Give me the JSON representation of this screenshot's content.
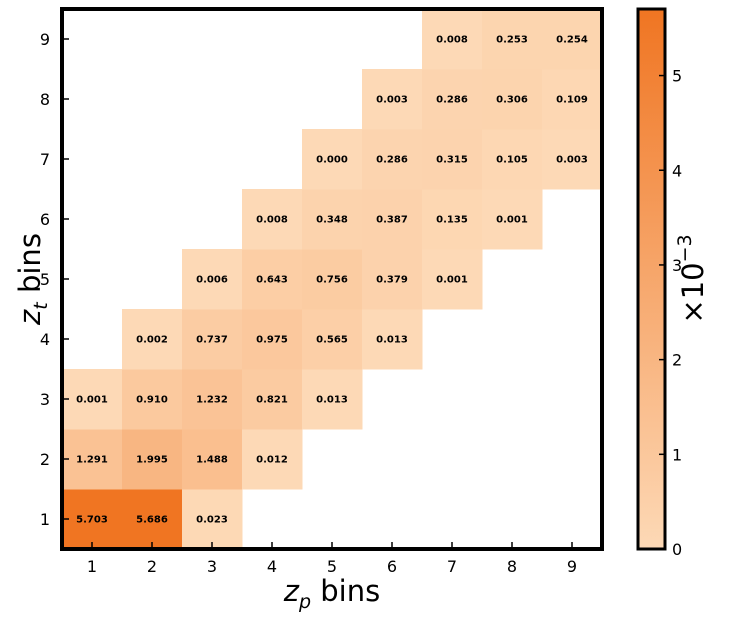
{
  "chart_data": {
    "type": "heatmap",
    "title": "",
    "xlabel": "z_p bins",
    "ylabel": "z_t bins",
    "x_categories": [
      "1",
      "2",
      "3",
      "4",
      "5",
      "6",
      "7",
      "8",
      "9"
    ],
    "y_categories": [
      "1",
      "2",
      "3",
      "4",
      "5",
      "6",
      "7",
      "8",
      "9"
    ],
    "colorbar": {
      "label": "×10⁻³",
      "min": 0,
      "max": 5.703,
      "ticks": [
        "0",
        "1",
        "2",
        "3",
        "4",
        "5"
      ],
      "color_low": "#fdd9b6",
      "color_high": "#f07522"
    },
    "cells": [
      {
        "x": "1",
        "y": "1",
        "value": 5.703,
        "label": "5.703"
      },
      {
        "x": "2",
        "y": "1",
        "value": 5.686,
        "label": "5.686"
      },
      {
        "x": "3",
        "y": "1",
        "value": 0.023,
        "label": "0.023"
      },
      {
        "x": "1",
        "y": "2",
        "value": 1.291,
        "label": "1.291"
      },
      {
        "x": "2",
        "y": "2",
        "value": 1.995,
        "label": "1.995"
      },
      {
        "x": "3",
        "y": "2",
        "value": 1.488,
        "label": "1.488"
      },
      {
        "x": "4",
        "y": "2",
        "value": 0.012,
        "label": "0.012"
      },
      {
        "x": "1",
        "y": "3",
        "value": 0.001,
        "label": "0.001"
      },
      {
        "x": "2",
        "y": "3",
        "value": 0.91,
        "label": "0.910"
      },
      {
        "x": "3",
        "y": "3",
        "value": 1.232,
        "label": "1.232"
      },
      {
        "x": "4",
        "y": "3",
        "value": 0.821,
        "label": "0.821"
      },
      {
        "x": "5",
        "y": "3",
        "value": 0.013,
        "label": "0.013"
      },
      {
        "x": "2",
        "y": "4",
        "value": 0.002,
        "label": "0.002"
      },
      {
        "x": "3",
        "y": "4",
        "value": 0.737,
        "label": "0.737"
      },
      {
        "x": "4",
        "y": "4",
        "value": 0.975,
        "label": "0.975"
      },
      {
        "x": "5",
        "y": "4",
        "value": 0.565,
        "label": "0.565"
      },
      {
        "x": "6",
        "y": "4",
        "value": 0.013,
        "label": "0.013"
      },
      {
        "x": "3",
        "y": "5",
        "value": 0.006,
        "label": "0.006"
      },
      {
        "x": "4",
        "y": "5",
        "value": 0.643,
        "label": "0.643"
      },
      {
        "x": "5",
        "y": "5",
        "value": 0.756,
        "label": "0.756"
      },
      {
        "x": "6",
        "y": "5",
        "value": 0.379,
        "label": "0.379"
      },
      {
        "x": "7",
        "y": "5",
        "value": 0.001,
        "label": "0.001"
      },
      {
        "x": "4",
        "y": "6",
        "value": 0.008,
        "label": "0.008"
      },
      {
        "x": "5",
        "y": "6",
        "value": 0.348,
        "label": "0.348"
      },
      {
        "x": "6",
        "y": "6",
        "value": 0.387,
        "label": "0.387"
      },
      {
        "x": "7",
        "y": "6",
        "value": 0.135,
        "label": "0.135"
      },
      {
        "x": "8",
        "y": "6",
        "value": 0.001,
        "label": "0.001"
      },
      {
        "x": "5",
        "y": "7",
        "value": 0.0,
        "label": "0.000"
      },
      {
        "x": "6",
        "y": "7",
        "value": 0.286,
        "label": "0.286"
      },
      {
        "x": "7",
        "y": "7",
        "value": 0.315,
        "label": "0.315"
      },
      {
        "x": "8",
        "y": "7",
        "value": 0.105,
        "label": "0.105"
      },
      {
        "x": "9",
        "y": "7",
        "value": 0.003,
        "label": "0.003"
      },
      {
        "x": "6",
        "y": "8",
        "value": 0.003,
        "label": "0.003"
      },
      {
        "x": "7",
        "y": "8",
        "value": 0.286,
        "label": "0.286"
      },
      {
        "x": "8",
        "y": "8",
        "value": 0.306,
        "label": "0.306"
      },
      {
        "x": "9",
        "y": "8",
        "value": 0.109,
        "label": "0.109"
      },
      {
        "x": "7",
        "y": "9",
        "value": 0.008,
        "label": "0.008"
      },
      {
        "x": "8",
        "y": "9",
        "value": 0.253,
        "label": "0.253"
      },
      {
        "x": "9",
        "y": "9",
        "value": 0.254,
        "label": "0.254"
      }
    ]
  }
}
